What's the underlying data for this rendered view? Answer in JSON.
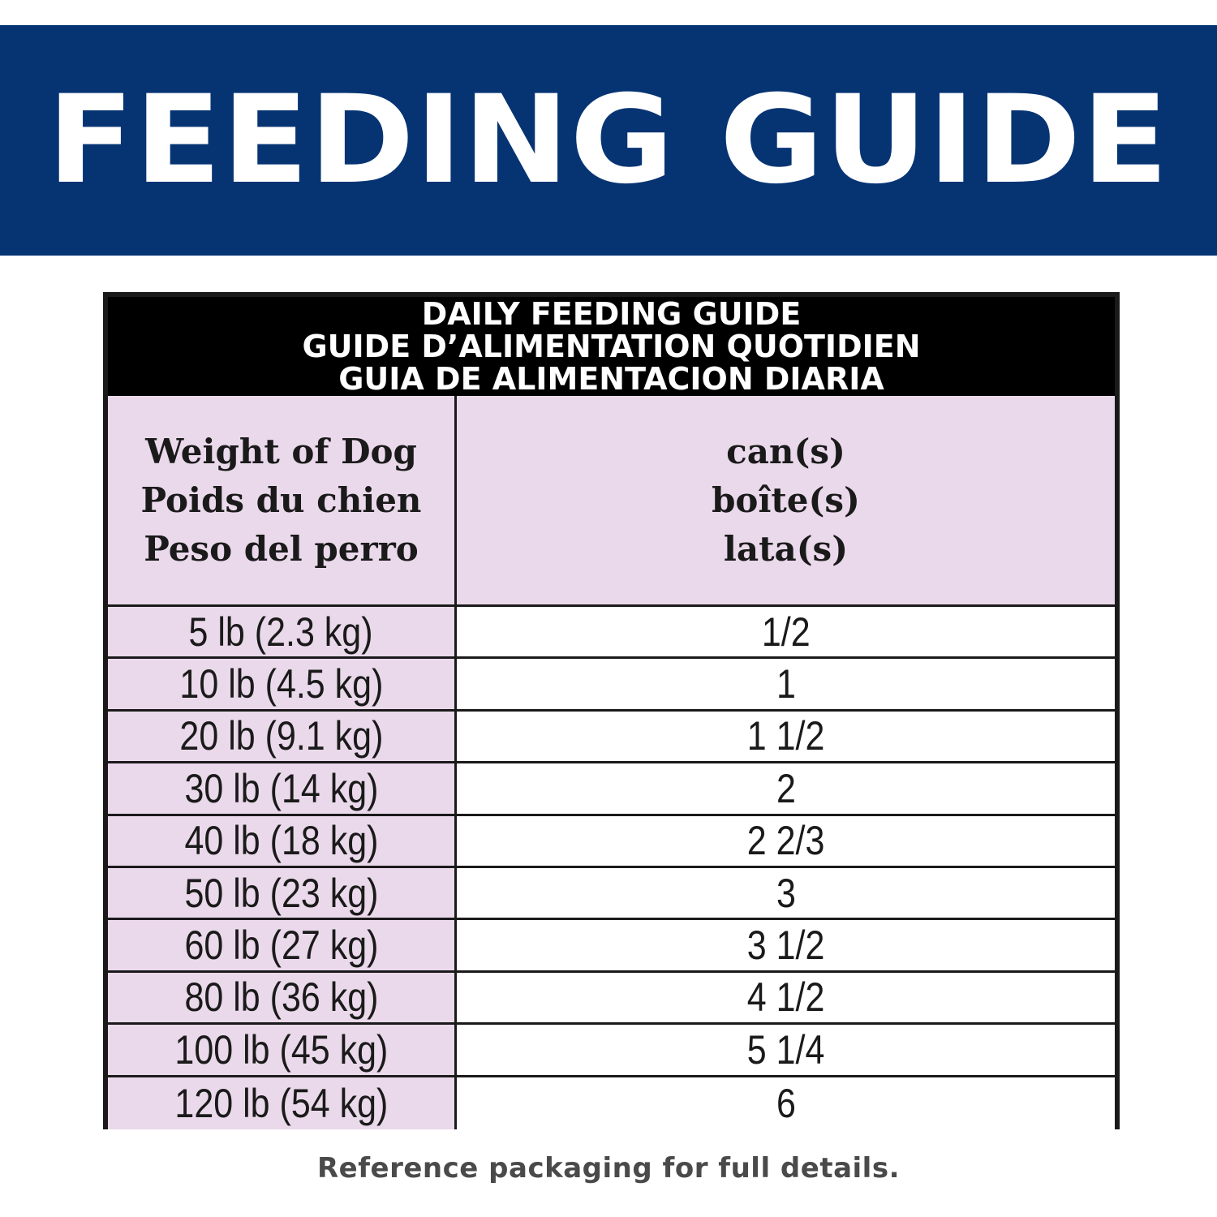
{
  "banner": {
    "title": "FEEDING GUIDE"
  },
  "table": {
    "title_lines": [
      "DAILY FEEDING GUIDE",
      "GUIDE D’ALIMENTATION QUOTIDIEN",
      "GUIA DE ALIMENTACION DIARIA"
    ],
    "weight_header": [
      "Weight of Dog",
      "Poids du chien",
      "Peso del perro"
    ],
    "amount_header": [
      "can(s)",
      "boîte(s)",
      "lata(s)"
    ],
    "rows": [
      {
        "weight": "5 lb (2.3 kg)",
        "cans": "1/2"
      },
      {
        "weight": "10 lb (4.5 kg)",
        "cans": "1"
      },
      {
        "weight": "20 lb (9.1 kg)",
        "cans": "1 1/2"
      },
      {
        "weight": "30 lb (14 kg)",
        "cans": "2"
      },
      {
        "weight": "40 lb (18 kg)",
        "cans": "2 2/3"
      },
      {
        "weight": "50 lb (23 kg)",
        "cans": "3"
      },
      {
        "weight": "60 lb (27 kg)",
        "cans": "3 1/2"
      },
      {
        "weight": "80 lb (36 kg)",
        "cans": "4 1/2"
      },
      {
        "weight": "100 lb (45 kg)",
        "cans": "5 1/4"
      },
      {
        "weight": "120 lb (54 kg)",
        "cans": "6"
      }
    ]
  },
  "footer": {
    "note": "Reference packaging for full details."
  },
  "colors": {
    "banner_bg": "#063473",
    "header_bg": "#000000",
    "weight_col_bg": "#ead9ea",
    "amount_col_bg": "#ffffff"
  }
}
